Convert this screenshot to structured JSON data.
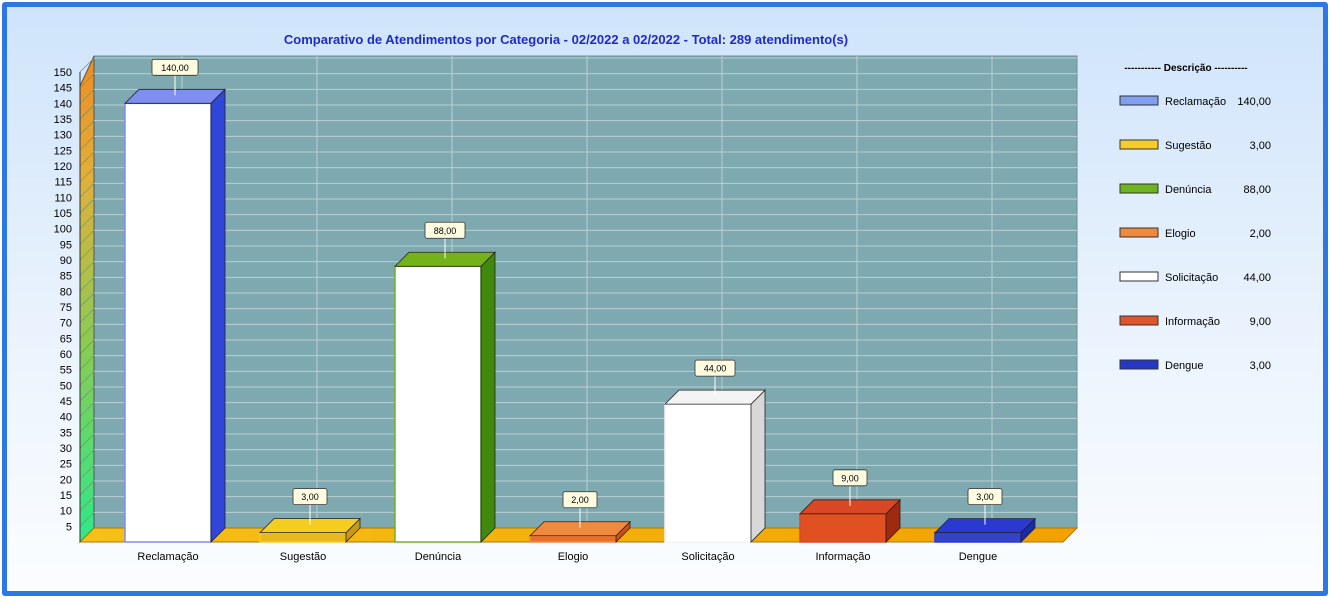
{
  "chart_data": {
    "type": "bar",
    "title": "Comparativo  de  Atendimentos  por  Categoria  -  02/2022  a  02/2022  -  Total:  289  atendimento(s)",
    "categories": [
      "Reclamação",
      "Sugestão",
      "Denúncia",
      "Elogio",
      "Solicitação",
      "Informação",
      "Dengue"
    ],
    "values": [
      140,
      3,
      88,
      2,
      44,
      9,
      3
    ],
    "value_labels": [
      "140,00",
      "3,00",
      "88,00",
      "2,00",
      "44,00",
      "9,00",
      "3,00"
    ],
    "front_colors": [
      "#ffffff",
      "#e8b81c",
      "#ffffff",
      "#e8702a",
      "#ffffff",
      "#e05020",
      "#3344cc"
    ],
    "top_colors": [
      "#7f8ff0",
      "#f5cc20",
      "#74b21a",
      "#f08a40",
      "#f4f4f4",
      "#d94824",
      "#2a3ad0"
    ],
    "side_colors": [
      "#2f46d8",
      "#c89a10",
      "#3f8a0e",
      "#c8501c",
      "#d8d8d8",
      "#a02a10",
      "#1a2aa8"
    ],
    "ylim": [
      0,
      150
    ],
    "yticks": [
      5,
      10,
      15,
      20,
      25,
      30,
      35,
      40,
      45,
      50,
      55,
      60,
      65,
      70,
      75,
      80,
      85,
      90,
      95,
      100,
      105,
      110,
      115,
      120,
      125,
      130,
      135,
      140,
      145,
      150
    ],
    "grid": true,
    "legend": {
      "heading": "----------- Descrição ----------",
      "placement": "right",
      "items": [
        {
          "label": "Reclamação",
          "value": "140,00",
          "color": "#7f9ff2"
        },
        {
          "label": "Sugestão",
          "value": "3,00",
          "color": "#f7cc28"
        },
        {
          "label": "Denúncia",
          "value": "88,00",
          "color": "#6cb51e"
        },
        {
          "label": "Elogio",
          "value": "2,00",
          "color": "#f2883a"
        },
        {
          "label": "Solicitação",
          "value": "44,00",
          "color": "#ffffff"
        },
        {
          "label": "Informação",
          "value": "9,00",
          "color": "#e0542a"
        },
        {
          "label": "Dengue",
          "value": "3,00",
          "color": "#2438c8"
        }
      ]
    }
  }
}
